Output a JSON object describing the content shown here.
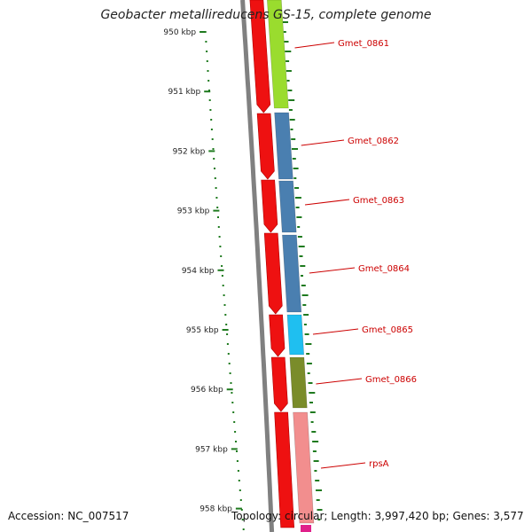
{
  "title": "Geobacter metallireducens GS-15, complete genome",
  "accession": "Accession: NC_007517",
  "topology": "Topology: circular; Length: 3,997,420 bp; Genes: 3,577",
  "scale_labels": [
    "950 kbp",
    "951 kbp",
    "952 kbp",
    "953 kbp",
    "954 kbp",
    "955 kbp",
    "956 kbp",
    "957 kbp",
    "958 kbp"
  ],
  "genes": [
    {
      "name": "Gmet_0861",
      "color": "#9adc2e"
    },
    {
      "name": "Gmet_0862",
      "color": "#4a7fb0"
    },
    {
      "name": "Gmet_0863",
      "color": "#4a7fb0"
    },
    {
      "name": "Gmet_0864",
      "color": "#4a7fb0"
    },
    {
      "name": "Gmet_0865",
      "color": "#1fbff0"
    },
    {
      "name": "Gmet_0866",
      "color": "#7a8c2a"
    },
    {
      "name": "rpsA",
      "color": "#f28e8e"
    }
  ],
  "colors": {
    "backbone": "#808080",
    "reverse_strand": "#ee1111",
    "gc_ticks": "#1f7a1f",
    "label": "#cc0000"
  }
}
